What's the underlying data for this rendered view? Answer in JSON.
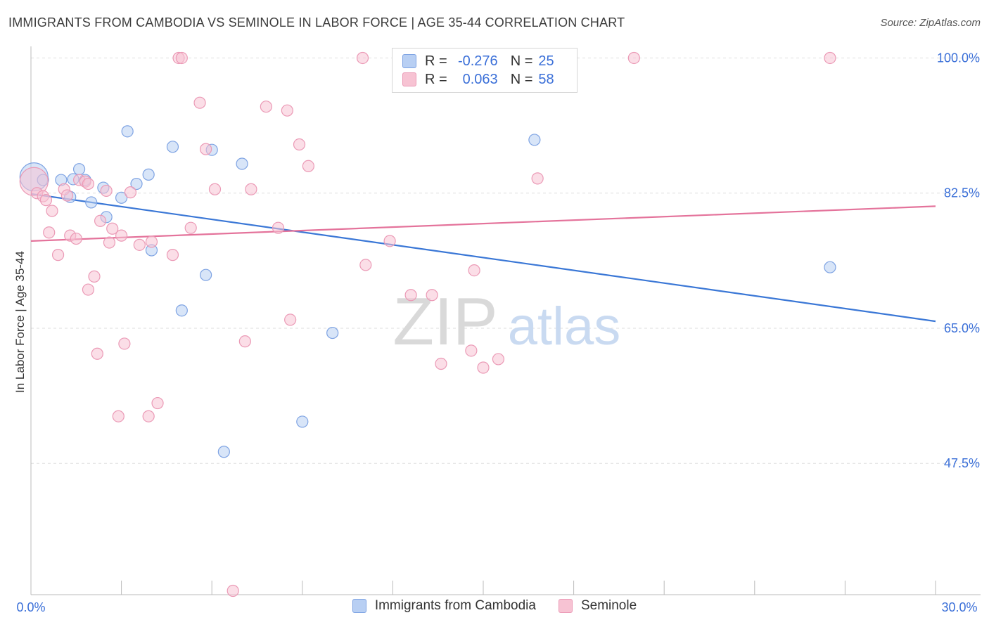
{
  "title": "IMMIGRANTS FROM CAMBODIA VS SEMINOLE IN LABOR FORCE | AGE 35-44 CORRELATION CHART",
  "source": "Source: ZipAtlas.com",
  "watermark": {
    "zip": "ZIP",
    "atlas": "atlas"
  },
  "legend_top": {
    "rows": [
      {
        "r_label": "R =",
        "r_value": "-0.276",
        "n_label": "N =",
        "n_value": "25"
      },
      {
        "r_label": "R =",
        "r_value": "0.063",
        "n_label": "N =",
        "n_value": "58"
      }
    ]
  },
  "legend_bottom": {
    "items": [
      {
        "label": "Immigrants from Cambodia"
      },
      {
        "label": "Seminole"
      }
    ]
  },
  "colors": {
    "blue_fill": "#b8cff3",
    "blue_stroke": "#7ea3e3",
    "blue_line": "#3a77d6",
    "pink_fill": "#f7c3d3",
    "pink_stroke": "#eb9ab6",
    "pink_line": "#e4739b",
    "tick_label": "#3a6fd8",
    "grid": "#dddddd"
  },
  "chart_data": {
    "type": "scatter",
    "title": "IMMIGRANTS FROM CAMBODIA VS SEMINOLE IN LABOR FORCE | AGE 35-44 CORRELATION CHART",
    "xlabel": "",
    "ylabel": "In Labor Force | Age 35-44",
    "xlim": [
      0,
      30
    ],
    "ylim": [
      30.5,
      101.5
    ],
    "x_tick_labels": [
      "0.0%",
      "30.0%"
    ],
    "y_ticks": [
      47.5,
      65.0,
      82.5,
      100.0
    ],
    "y_tick_labels": [
      "47.5%",
      "65.0%",
      "82.5%",
      "100.0%"
    ],
    "grid": true,
    "legend_position": "top-center",
    "series": [
      {
        "name": "Immigrants from Cambodia",
        "color": "blue",
        "trend": {
          "x": [
            0,
            30
          ],
          "y": [
            82.4,
            65.9
          ]
        },
        "points": [
          {
            "x": 0.1,
            "y": 84.6,
            "big": true
          },
          {
            "x": 0.4,
            "y": 84.2
          },
          {
            "x": 1.4,
            "y": 84.3
          },
          {
            "x": 1.0,
            "y": 84.2
          },
          {
            "x": 1.6,
            "y": 85.6
          },
          {
            "x": 1.8,
            "y": 84.2
          },
          {
            "x": 1.3,
            "y": 82.0
          },
          {
            "x": 2.0,
            "y": 81.3
          },
          {
            "x": 2.4,
            "y": 83.2
          },
          {
            "x": 2.5,
            "y": 79.4
          },
          {
            "x": 3.0,
            "y": 81.9
          },
          {
            "x": 3.2,
            "y": 90.5
          },
          {
            "x": 3.5,
            "y": 83.7
          },
          {
            "x": 3.9,
            "y": 84.9
          },
          {
            "x": 4.0,
            "y": 75.1
          },
          {
            "x": 4.7,
            "y": 88.5
          },
          {
            "x": 5.0,
            "y": 67.3
          },
          {
            "x": 5.8,
            "y": 71.9
          },
          {
            "x": 6.0,
            "y": 88.1
          },
          {
            "x": 6.4,
            "y": 49.0
          },
          {
            "x": 7.0,
            "y": 86.3
          },
          {
            "x": 9.0,
            "y": 52.9
          },
          {
            "x": 10.0,
            "y": 64.4
          },
          {
            "x": 16.7,
            "y": 89.4
          },
          {
            "x": 26.5,
            "y": 72.9
          }
        ]
      },
      {
        "name": "Seminole",
        "color": "pink",
        "trend": {
          "x": [
            0,
            30
          ],
          "y": [
            76.3,
            80.8
          ]
        },
        "points": [
          {
            "x": 0.1,
            "y": 84.0,
            "big": true
          },
          {
            "x": 0.2,
            "y": 82.5
          },
          {
            "x": 0.4,
            "y": 82.1
          },
          {
            "x": 0.5,
            "y": 81.6
          },
          {
            "x": 0.6,
            "y": 77.4
          },
          {
            "x": 0.7,
            "y": 80.2
          },
          {
            "x": 0.9,
            "y": 74.5
          },
          {
            "x": 1.1,
            "y": 83.0
          },
          {
            "x": 1.2,
            "y": 82.2
          },
          {
            "x": 1.3,
            "y": 77.0
          },
          {
            "x": 1.5,
            "y": 76.6
          },
          {
            "x": 1.6,
            "y": 84.2
          },
          {
            "x": 1.8,
            "y": 84.0
          },
          {
            "x": 1.9,
            "y": 83.7
          },
          {
            "x": 1.9,
            "y": 70.0
          },
          {
            "x": 2.1,
            "y": 71.7
          },
          {
            "x": 2.2,
            "y": 61.7
          },
          {
            "x": 2.3,
            "y": 78.9
          },
          {
            "x": 2.5,
            "y": 82.8
          },
          {
            "x": 2.6,
            "y": 76.1
          },
          {
            "x": 2.7,
            "y": 77.9
          },
          {
            "x": 2.9,
            "y": 53.6
          },
          {
            "x": 3.0,
            "y": 77.0
          },
          {
            "x": 3.1,
            "y": 63.0
          },
          {
            "x": 3.3,
            "y": 82.6
          },
          {
            "x": 3.6,
            "y": 75.8
          },
          {
            "x": 3.9,
            "y": 53.6
          },
          {
            "x": 4.0,
            "y": 76.2
          },
          {
            "x": 4.2,
            "y": 55.3
          },
          {
            "x": 4.7,
            "y": 74.5
          },
          {
            "x": 4.9,
            "y": 100.0
          },
          {
            "x": 5.0,
            "y": 100.0
          },
          {
            "x": 5.3,
            "y": 78.0
          },
          {
            "x": 5.6,
            "y": 94.2
          },
          {
            "x": 5.8,
            "y": 88.2
          },
          {
            "x": 6.1,
            "y": 83.0
          },
          {
            "x": 6.7,
            "y": 31.0
          },
          {
            "x": 7.1,
            "y": 63.3
          },
          {
            "x": 7.3,
            "y": 83.0
          },
          {
            "x": 7.8,
            "y": 93.7
          },
          {
            "x": 8.2,
            "y": 78.0
          },
          {
            "x": 8.5,
            "y": 93.2
          },
          {
            "x": 8.6,
            "y": 66.1
          },
          {
            "x": 8.9,
            "y": 88.8
          },
          {
            "x": 9.2,
            "y": 86.0
          },
          {
            "x": 11.0,
            "y": 100.0
          },
          {
            "x": 11.1,
            "y": 73.2
          },
          {
            "x": 11.9,
            "y": 76.3
          },
          {
            "x": 12.6,
            "y": 69.3
          },
          {
            "x": 13.3,
            "y": 69.3
          },
          {
            "x": 13.6,
            "y": 60.4
          },
          {
            "x": 14.6,
            "y": 62.1
          },
          {
            "x": 14.7,
            "y": 72.5
          },
          {
            "x": 15.0,
            "y": 59.9
          },
          {
            "x": 15.5,
            "y": 61.0
          },
          {
            "x": 16.8,
            "y": 84.4
          },
          {
            "x": 20.0,
            "y": 100.0
          },
          {
            "x": 26.5,
            "y": 100.0
          }
        ]
      }
    ]
  }
}
